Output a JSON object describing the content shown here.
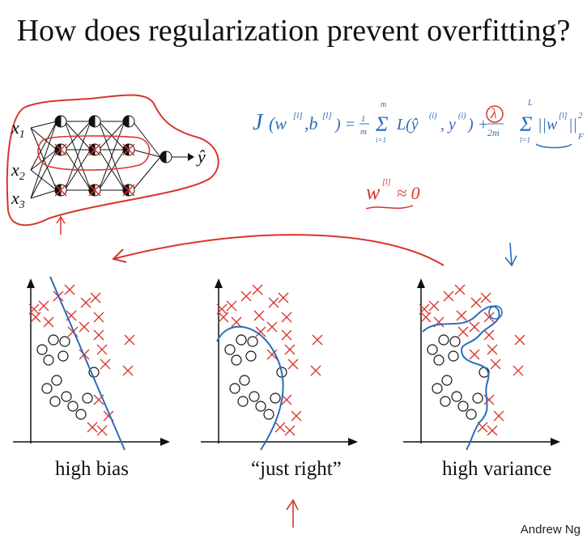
{
  "slide": {
    "title": "How does regularization prevent overfitting?",
    "credit": "Andrew Ng"
  },
  "network": {
    "inputs": [
      "x",
      "x",
      "x"
    ],
    "input_subscripts": [
      "1",
      "2",
      "3"
    ],
    "output": "ŷ"
  },
  "annotations": {
    "cost_function": "J(w[l],b[l]) = 1/m Σ_{i=1}^{m} L(ŷ(i), y(i)) + λ/2m Σ_{l=1}^{L} ||w[l]||²_F",
    "weights_near_zero": "w[l] ≈ 0",
    "cost_J": "J",
    "cost_args": "(w",
    "cost_sup": "[l]",
    "cost_b": ",b",
    "cost_eq": ") =",
    "cost_one": "1",
    "cost_m": "m",
    "cost_sum_top": "m",
    "cost_sigma": "Σ",
    "cost_sum_bottom": "i=1",
    "cost_loss": "L(ŷ",
    "cost_sup_i": "(i)",
    "cost_comma_y": ", y",
    "cost_close": ")",
    "cost_plus": "+",
    "cost_lambda": "λ",
    "cost_2m": "2m",
    "cost_L_top": "L",
    "cost_l_bottom": "l=1",
    "cost_norm": "||w",
    "cost_norm_close": "||",
    "cost_sq": "2",
    "cost_F": "F",
    "w_text": "w",
    "w_sup": "[l]",
    "approx_zero": "≈ 0",
    "stroke_red": "#d9342b",
    "stroke_blue": "#2b6cb8"
  },
  "plots": [
    {
      "label": "high bias",
      "fit": "linear boundary"
    },
    {
      "label": "“just right”",
      "fit": "smooth curved boundary"
    },
    {
      "label": "high variance",
      "fit": "wiggly overfit boundary"
    }
  ],
  "colors": {
    "o_marker": "#111111",
    "x_marker": "#d9342b",
    "ink_red": "#d9342b",
    "ink_blue": "#2b6cb8"
  }
}
